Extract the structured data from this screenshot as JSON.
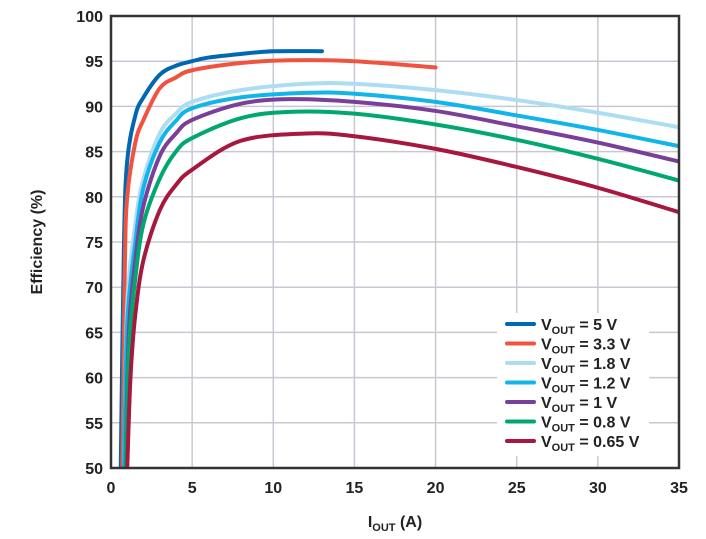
{
  "chart_data": {
    "type": "line",
    "xlabel": "I",
    "xlabel_sub": "OUT",
    "xlabel_unit": " (A)",
    "ylabel": "Efficiency (%)",
    "xlim": [
      0,
      35
    ],
    "ylim": [
      50,
      100
    ],
    "xticks": [
      0,
      5,
      10,
      15,
      20,
      25,
      30,
      35
    ],
    "yticks": [
      50,
      55,
      60,
      65,
      70,
      75,
      80,
      85,
      90,
      95,
      100
    ],
    "grid": true,
    "legend": "bottom-right",
    "series": [
      {
        "name": "5 V",
        "color": "#0068b3",
        "x": [
          0.6,
          0.8,
          1,
          1.5,
          2,
          3,
          4,
          5,
          6,
          8,
          10,
          13
        ],
        "y": [
          50,
          75,
          84,
          89,
          91,
          93.5,
          94.5,
          95,
          95.4,
          95.8,
          96.1,
          96.1
        ]
      },
      {
        "name": "3.3 V",
        "color": "#f0533f",
        "x": [
          0.7,
          0.85,
          1,
          1.5,
          2,
          3,
          4,
          5,
          8,
          11,
          15,
          20
        ],
        "y": [
          50,
          72,
          80,
          86,
          88.5,
          92,
          93.2,
          94,
          94.8,
          95.1,
          95,
          94.3
        ]
      },
      {
        "name": "1.8 V",
        "color": "#addcf3",
        "x": [
          0.8,
          1,
          1.5,
          2,
          3,
          4,
          5,
          8,
          12,
          15,
          20,
          25,
          30,
          35
        ],
        "y": [
          50,
          68,
          77,
          82,
          87,
          89.2,
          90.5,
          91.8,
          92.5,
          92.5,
          91.8,
          90.7,
          89.3,
          87.7
        ]
      },
      {
        "name": "1.2 V",
        "color": "#12b5ea",
        "x": [
          0.8,
          1,
          1.5,
          2,
          3,
          4,
          5,
          8,
          12,
          15,
          20,
          25,
          30,
          35
        ],
        "y": [
          50,
          66,
          75,
          81,
          86,
          88.4,
          89.8,
          91,
          91.5,
          91.4,
          90.5,
          89,
          87.4,
          85.6
        ]
      },
      {
        "name": "1 V",
        "color": "#7a3f99",
        "x": [
          0.9,
          1.1,
          1.5,
          2,
          3,
          4,
          5,
          8,
          11,
          15,
          20,
          25,
          30,
          35
        ],
        "y": [
          50,
          65,
          73,
          79,
          84.5,
          87,
          88.5,
          90.3,
          90.8,
          90.5,
          89.5,
          87.8,
          86,
          83.9
        ]
      },
      {
        "name": "0.8 V",
        "color": "#00a870",
        "x": [
          0.9,
          1.1,
          1.5,
          2,
          3,
          4,
          5,
          8,
          11,
          15,
          20,
          25,
          30,
          35
        ],
        "y": [
          50,
          63,
          71,
          77,
          82,
          85,
          86.5,
          88.7,
          89.4,
          89.2,
          88,
          86.3,
          84.2,
          81.8
        ]
      },
      {
        "name": "0.65 V",
        "color": "#a6183e",
        "x": [
          1,
          1.2,
          1.5,
          2,
          3,
          4,
          5,
          8,
          12,
          15,
          20,
          25,
          30,
          35
        ],
        "y": [
          50,
          60,
          67,
          73,
          78.5,
          81.3,
          83,
          86.2,
          87,
          86.7,
          85.3,
          83.3,
          81,
          78.3
        ]
      }
    ],
    "legend_prefix": "V",
    "legend_prefix_sub": "OUT",
    "legend_eq": " = "
  }
}
